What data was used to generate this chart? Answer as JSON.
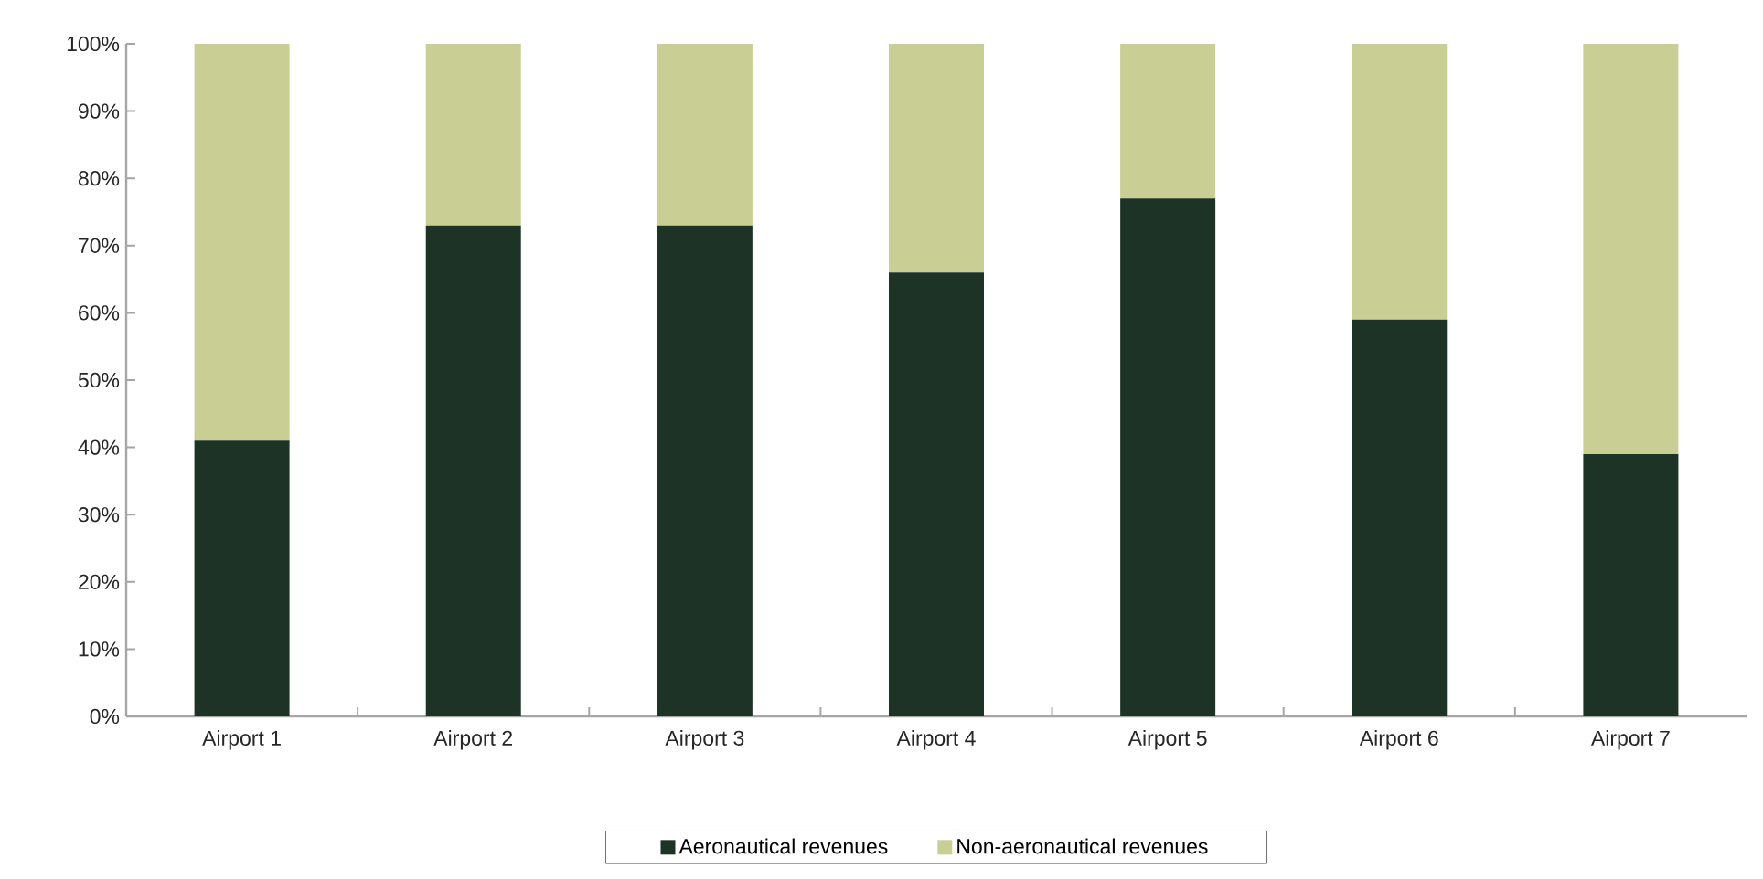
{
  "chart_data": {
    "type": "bar",
    "stacked": true,
    "categories": [
      "Airport 1",
      "Airport 2",
      "Airport 3",
      "Airport 4",
      "Airport 5",
      "Airport 6",
      "Airport 7"
    ],
    "series": [
      {
        "name": "Aeronautical revenues",
        "color": "#1c3326",
        "values": [
          41,
          73,
          73,
          66,
          77,
          59,
          39
        ]
      },
      {
        "name": "Non-aeronautical revenues",
        "color": "#c9ce94",
        "values": [
          59,
          27,
          27,
          34,
          23,
          41,
          61
        ]
      }
    ],
    "ylim": [
      0,
      100
    ],
    "yticks": [
      {
        "value": 0,
        "label": "0%"
      },
      {
        "value": 10,
        "label": "10%"
      },
      {
        "value": 20,
        "label": "20%"
      },
      {
        "value": 30,
        "label": "30%"
      },
      {
        "value": 40,
        "label": "40%"
      },
      {
        "value": 50,
        "label": "50%"
      },
      {
        "value": 60,
        "label": "60%"
      },
      {
        "value": 70,
        "label": "70%"
      },
      {
        "value": 80,
        "label": "80%"
      },
      {
        "value": 90,
        "label": "90%"
      },
      {
        "value": 100,
        "label": "100%"
      }
    ],
    "legend": "bottom",
    "grid": false
  }
}
